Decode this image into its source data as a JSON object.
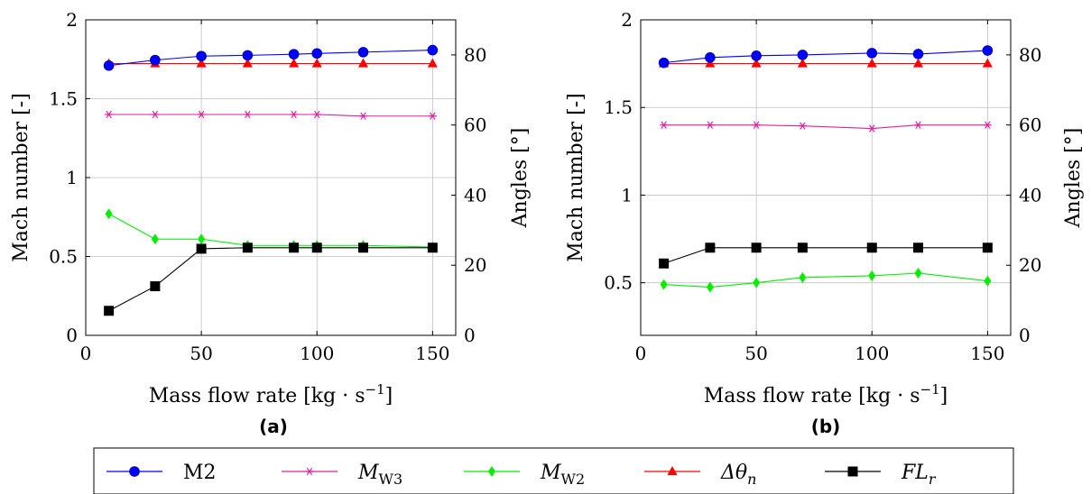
{
  "chart_data": [
    {
      "type": "line",
      "panel_label": "(a)",
      "xlabel": "Mass flow rate [kg · s",
      "xlabel_sup": "−1",
      "xlabel_end": "]",
      "ylabel": "Mach number [-]",
      "y2label": "Angles [°]",
      "xlim": [
        0,
        160
      ],
      "ylim": [
        0,
        2
      ],
      "y2lim": [
        0,
        90
      ],
      "x_ticks": [
        "0",
        "50",
        "100",
        "150"
      ],
      "y_ticks": [
        "0",
        "0.5",
        "1",
        "1.5",
        "2"
      ],
      "y2_ticks": [
        "0",
        "20",
        "40",
        "60",
        "80"
      ],
      "grid": true,
      "x": [
        10,
        30,
        50,
        70,
        90,
        100,
        120,
        150
      ],
      "series": [
        {
          "name": "M2",
          "axis": "left",
          "values": [
            1.71,
            1.745,
            1.77,
            1.775,
            1.782,
            1.787,
            1.795,
            1.808
          ]
        },
        {
          "name": "M_W3",
          "axis": "left",
          "values": [
            1.4,
            1.4,
            1.4,
            1.4,
            1.4,
            1.4,
            1.39,
            1.39
          ]
        },
        {
          "name": "M_W2",
          "axis": "left",
          "values": [
            0.77,
            0.61,
            0.61,
            0.57,
            0.57,
            0.57,
            0.57,
            0.56
          ]
        },
        {
          "name": "Δθ_n",
          "axis": "right",
          "values": [
            77.5,
            77.5,
            77.5,
            77.5,
            77.5,
            77.5,
            77.5,
            77.5
          ]
        },
        {
          "name": "FL_r",
          "axis": "right",
          "values": [
            7,
            14,
            24.7,
            25,
            25,
            25,
            25,
            25
          ]
        }
      ]
    },
    {
      "type": "line",
      "panel_label": "(b)",
      "xlabel": "Mass flow rate [kg · s",
      "xlabel_sup": "−1",
      "xlabel_end": "]",
      "ylabel": "Mach number [-]",
      "y2label": "Angles [°]",
      "xlim": [
        0,
        160
      ],
      "ylim": [
        0.2,
        2
      ],
      "y2lim": [
        0,
        90
      ],
      "x_ticks": [
        "0",
        "50",
        "100",
        "150"
      ],
      "y_ticks": [
        "0.5",
        "1",
        "1.5",
        "2"
      ],
      "y2_ticks": [
        "0",
        "20",
        "40",
        "60",
        "80"
      ],
      "grid": true,
      "x": [
        10,
        30,
        50,
        70,
        100,
        120,
        150
      ],
      "series": [
        {
          "name": "M2",
          "axis": "left",
          "values": [
            1.755,
            1.785,
            1.795,
            1.8,
            1.81,
            1.805,
            1.825
          ]
        },
        {
          "name": "M_W3",
          "axis": "left",
          "values": [
            1.4,
            1.4,
            1.4,
            1.395,
            1.38,
            1.4,
            1.4
          ]
        },
        {
          "name": "M_W2",
          "axis": "left",
          "values": [
            0.49,
            0.475,
            0.5,
            0.53,
            0.54,
            0.555,
            0.51
          ]
        },
        {
          "name": "Δθ_n",
          "axis": "right",
          "values": [
            77.5,
            77.5,
            77.5,
            77.5,
            77.5,
            77.5,
            77.5
          ]
        },
        {
          "name": "FL_r",
          "axis": "right",
          "values": [
            20.5,
            25,
            25,
            25,
            25,
            25,
            25
          ]
        }
      ]
    }
  ],
  "legend": [
    {
      "key": "M2",
      "label": "M2",
      "sub": "",
      "color": "#0000ff",
      "marker": "circle"
    },
    {
      "key": "M_W3",
      "label": "M",
      "sub": "W3",
      "color": "#e020a0",
      "marker": "asterisk"
    },
    {
      "key": "M_W2",
      "label": "M",
      "sub": "W2",
      "color": "#00ee00",
      "marker": "diamond"
    },
    {
      "key": "Δθ_n",
      "label": "Δθ",
      "sub": "n",
      "color": "#ff0000",
      "marker": "triangle"
    },
    {
      "key": "FL_r",
      "label": "FL",
      "sub": "r",
      "color": "#000000",
      "marker": "square"
    }
  ],
  "series_style": {
    "M2": {
      "color": "#0000ff",
      "marker": "circle"
    },
    "M_W3": {
      "color": "#e020a0",
      "marker": "asterisk"
    },
    "M_W2": {
      "color": "#00ee00",
      "marker": "diamond"
    },
    "Δθ_n": {
      "color": "#ff0000",
      "marker": "triangle"
    },
    "FL_r": {
      "color": "#000000",
      "marker": "square"
    }
  }
}
